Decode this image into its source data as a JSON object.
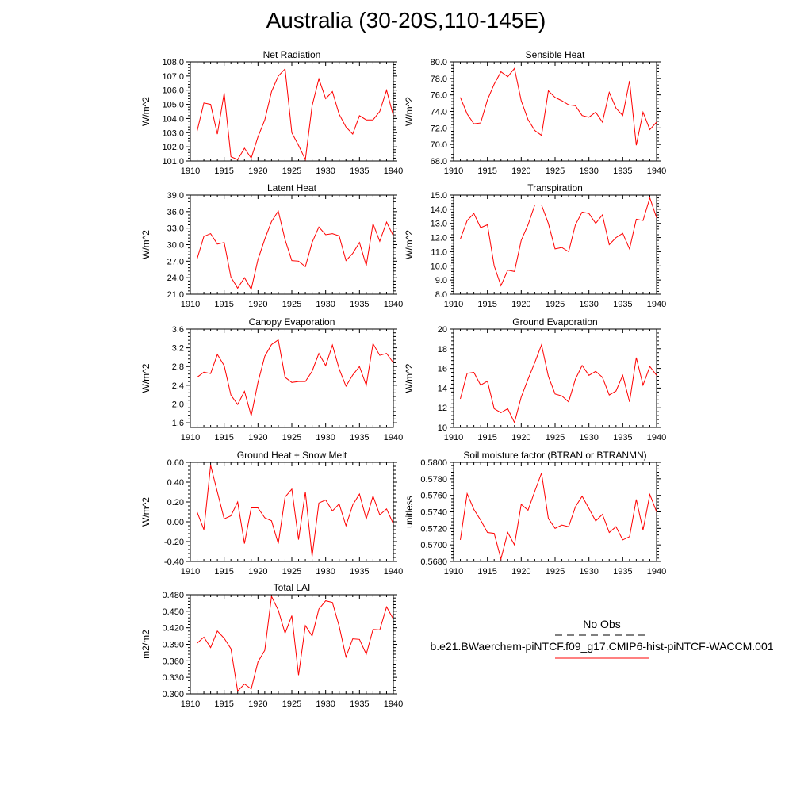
{
  "figure": {
    "title": "Australia (30-20S,110-145E)"
  },
  "legend": {
    "obs_label": "No Obs",
    "model_label": "b.e21.BWaerchem-piNTCF.f09_g17.CMIP6-hist-piNTCF-WACCM.001",
    "obs_color": "#000000",
    "model_color": "#ff0000"
  },
  "chart_data": [
    {
      "type": "line",
      "title": "Net Radiation",
      "xlabel": "",
      "ylabel": "W/m^2",
      "xlim": [
        1910,
        1940
      ],
      "ylim": [
        101.0,
        108.0
      ],
      "x_ticks": [
        1910,
        1915,
        1920,
        1925,
        1930,
        1935,
        1940
      ],
      "y_ticks": [
        "101.0",
        "102.0",
        "103.0",
        "104.0",
        "105.0",
        "106.0",
        "107.0",
        "108.0"
      ],
      "series": [
        {
          "color": "#ff0000",
          "x": [
            1911,
            1912,
            1913,
            1914,
            1915,
            1916,
            1917,
            1918,
            1919,
            1920,
            1921,
            1922,
            1923,
            1924,
            1925,
            1926,
            1927,
            1928,
            1929,
            1930,
            1931,
            1932,
            1933,
            1934,
            1935,
            1936,
            1937,
            1938,
            1939,
            1940
          ],
          "values": [
            103.1,
            105.1,
            105.0,
            102.9,
            105.8,
            101.3,
            101.1,
            101.9,
            101.2,
            102.7,
            103.9,
            105.9,
            107.0,
            107.5,
            103.0,
            102.1,
            101.1,
            104.9,
            106.8,
            105.4,
            105.9,
            104.3,
            103.4,
            102.9,
            104.2,
            103.9,
            103.9,
            104.5,
            106.0,
            104.2
          ]
        }
      ]
    },
    {
      "type": "line",
      "title": "Sensible Heat",
      "xlabel": "",
      "ylabel": "W/m^2",
      "xlim": [
        1910,
        1940
      ],
      "ylim": [
        68.0,
        80.0
      ],
      "x_ticks": [
        1910,
        1915,
        1920,
        1925,
        1930,
        1935,
        1940
      ],
      "y_ticks": [
        "68.0",
        "70.0",
        "72.0",
        "74.0",
        "76.0",
        "78.0",
        "80.0"
      ],
      "series": [
        {
          "color": "#ff0000",
          "x": [
            1911,
            1912,
            1913,
            1914,
            1915,
            1916,
            1917,
            1918,
            1919,
            1920,
            1921,
            1922,
            1923,
            1924,
            1925,
            1926,
            1927,
            1928,
            1929,
            1930,
            1931,
            1932,
            1933,
            1934,
            1935,
            1936,
            1937,
            1938,
            1939,
            1940
          ],
          "values": [
            75.7,
            73.7,
            72.5,
            72.6,
            75.4,
            77.3,
            78.8,
            78.2,
            79.2,
            75.3,
            73.0,
            71.7,
            71.1,
            76.5,
            75.7,
            75.3,
            74.8,
            74.7,
            73.5,
            73.3,
            73.9,
            72.7,
            76.3,
            74.4,
            73.5,
            77.7,
            69.9,
            73.9,
            71.8,
            72.7
          ]
        }
      ]
    },
    {
      "type": "line",
      "title": "Latent Heat",
      "xlabel": "",
      "ylabel": "W/m^2",
      "xlim": [
        1910,
        1940
      ],
      "ylim": [
        21.0,
        39.0
      ],
      "x_ticks": [
        1910,
        1915,
        1920,
        1925,
        1930,
        1935,
        1940
      ],
      "y_ticks": [
        "21.0",
        "24.0",
        "27.0",
        "30.0",
        "33.0",
        "36.0",
        "39.0"
      ],
      "series": [
        {
          "color": "#ff0000",
          "x": [
            1911,
            1912,
            1913,
            1914,
            1915,
            1916,
            1917,
            1918,
            1919,
            1920,
            1921,
            1922,
            1923,
            1924,
            1925,
            1926,
            1927,
            1928,
            1929,
            1930,
            1931,
            1932,
            1933,
            1934,
            1935,
            1936,
            1937,
            1938,
            1939,
            1940
          ],
          "values": [
            27.4,
            31.5,
            32.0,
            30.1,
            30.4,
            24.1,
            22.1,
            24.0,
            21.9,
            27.3,
            31.0,
            34.2,
            36.1,
            30.9,
            27.1,
            27.0,
            26.0,
            30.4,
            33.2,
            31.8,
            32.0,
            31.6,
            27.1,
            28.4,
            30.4,
            26.2,
            33.8,
            30.6,
            34.1,
            31.6
          ]
        }
      ]
    },
    {
      "type": "line",
      "title": "Transpiration",
      "xlabel": "",
      "ylabel": "W/m^2",
      "xlim": [
        1910,
        1940
      ],
      "ylim": [
        8.0,
        15.0
      ],
      "x_ticks": [
        1910,
        1915,
        1920,
        1925,
        1930,
        1935,
        1940
      ],
      "y_ticks": [
        "8.0",
        "9.0",
        "10.0",
        "11.0",
        "12.0",
        "13.0",
        "14.0",
        "15.0"
      ],
      "series": [
        {
          "color": "#ff0000",
          "x": [
            1911,
            1912,
            1913,
            1914,
            1915,
            1916,
            1917,
            1918,
            1919,
            1920,
            1921,
            1922,
            1923,
            1924,
            1925,
            1926,
            1927,
            1928,
            1929,
            1930,
            1931,
            1932,
            1933,
            1934,
            1935,
            1936,
            1937,
            1938,
            1939,
            1940
          ],
          "values": [
            11.9,
            13.2,
            13.7,
            12.7,
            12.9,
            10.0,
            8.6,
            9.7,
            9.6,
            11.8,
            12.9,
            14.3,
            14.3,
            13.0,
            11.2,
            11.3,
            11.0,
            12.9,
            13.8,
            13.7,
            13.0,
            13.6,
            11.5,
            12.0,
            12.3,
            11.2,
            13.3,
            13.2,
            14.8,
            13.4
          ]
        }
      ]
    },
    {
      "type": "line",
      "title": "Canopy Evaporation",
      "xlabel": "",
      "ylabel": "W/m^2",
      "xlim": [
        1910,
        1940
      ],
      "ylim": [
        1.5,
        3.6
      ],
      "x_ticks": [
        1910,
        1915,
        1920,
        1925,
        1930,
        1935,
        1940
      ],
      "y_ticks": [
        "1.6",
        "2.0",
        "2.4",
        "2.8",
        "3.2",
        "3.6"
      ],
      "series": [
        {
          "color": "#ff0000",
          "x": [
            1911,
            1912,
            1913,
            1914,
            1915,
            1916,
            1917,
            1918,
            1919,
            1920,
            1921,
            1922,
            1923,
            1924,
            1925,
            1926,
            1927,
            1928,
            1929,
            1930,
            1931,
            1932,
            1933,
            1934,
            1935,
            1936,
            1937,
            1938,
            1939,
            1940
          ],
          "values": [
            2.57,
            2.68,
            2.65,
            3.06,
            2.82,
            2.19,
            1.99,
            2.27,
            1.75,
            2.46,
            3.02,
            3.27,
            3.37,
            2.57,
            2.46,
            2.48,
            2.48,
            2.7,
            3.08,
            2.82,
            3.26,
            2.75,
            2.38,
            2.62,
            2.8,
            2.4,
            3.29,
            3.04,
            3.08,
            2.88
          ]
        }
      ]
    },
    {
      "type": "line",
      "title": "Ground Evaporation",
      "xlabel": "",
      "ylabel": "W/m^2",
      "xlim": [
        1910,
        1940
      ],
      "ylim": [
        10,
        20
      ],
      "x_ticks": [
        1910,
        1915,
        1920,
        1925,
        1930,
        1935,
        1940
      ],
      "y_ticks": [
        "10",
        "12",
        "14",
        "16",
        "18",
        "20"
      ],
      "series": [
        {
          "color": "#ff0000",
          "x": [
            1911,
            1912,
            1913,
            1914,
            1915,
            1916,
            1917,
            1918,
            1919,
            1920,
            1921,
            1922,
            1923,
            1924,
            1925,
            1926,
            1927,
            1928,
            1929,
            1930,
            1931,
            1932,
            1933,
            1934,
            1935,
            1936,
            1937,
            1938,
            1939,
            1940
          ],
          "values": [
            12.9,
            15.5,
            15.6,
            14.3,
            14.7,
            11.9,
            11.5,
            11.9,
            10.5,
            13.1,
            14.9,
            16.6,
            18.4,
            15.2,
            13.4,
            13.2,
            12.6,
            14.9,
            16.3,
            15.3,
            15.7,
            15.1,
            13.3,
            13.7,
            15.3,
            12.6,
            17.1,
            14.3,
            16.2,
            15.3
          ]
        }
      ]
    },
    {
      "type": "line",
      "title": "Ground Heat + Snow Melt",
      "xlabel": "",
      "ylabel": "W/m^2",
      "xlim": [
        1910,
        1940
      ],
      "ylim": [
        -0.4,
        0.6
      ],
      "x_ticks": [
        1910,
        1915,
        1920,
        1925,
        1930,
        1935,
        1940
      ],
      "y_ticks": [
        "-0.40",
        "-0.20",
        "0.00",
        "0.20",
        "0.40",
        "0.60"
      ],
      "series": [
        {
          "color": "#ff0000",
          "x": [
            1911,
            1912,
            1913,
            1914,
            1915,
            1916,
            1917,
            1918,
            1919,
            1920,
            1921,
            1922,
            1923,
            1924,
            1925,
            1926,
            1927,
            1928,
            1929,
            1930,
            1931,
            1932,
            1933,
            1934,
            1935,
            1936,
            1937,
            1938,
            1939,
            1940
          ],
          "values": [
            0.1,
            -0.08,
            0.57,
            0.3,
            0.03,
            0.06,
            0.2,
            -0.22,
            0.14,
            0.14,
            0.04,
            0.01,
            -0.22,
            0.25,
            0.33,
            -0.18,
            0.3,
            -0.35,
            0.19,
            0.22,
            0.11,
            0.18,
            -0.04,
            0.17,
            0.28,
            0.03,
            0.26,
            0.07,
            0.13,
            -0.02
          ]
        }
      ]
    },
    {
      "type": "line",
      "title": "Soil moisture factor (BTRAN or BTRANMN)",
      "xlabel": "",
      "ylabel": "unitless",
      "xlim": [
        1910,
        1940
      ],
      "ylim": [
        0.568,
        0.58
      ],
      "x_ticks": [
        1910,
        1915,
        1920,
        1925,
        1930,
        1935,
        1940
      ],
      "y_ticks": [
        "0.5680",
        "0.5700",
        "0.5720",
        "0.5740",
        "0.5760",
        "0.5780",
        "0.5800"
      ],
      "series": [
        {
          "color": "#ff0000",
          "x": [
            1911,
            1912,
            1913,
            1914,
            1915,
            1916,
            1917,
            1918,
            1919,
            1920,
            1921,
            1922,
            1923,
            1924,
            1925,
            1926,
            1927,
            1928,
            1929,
            1930,
            1931,
            1932,
            1933,
            1934,
            1935,
            1936,
            1937,
            1938,
            1939,
            1940
          ],
          "values": [
            0.5706,
            0.5762,
            0.5743,
            0.573,
            0.5715,
            0.5714,
            0.5683,
            0.5715,
            0.57,
            0.5749,
            0.5742,
            0.5765,
            0.5787,
            0.5732,
            0.572,
            0.5724,
            0.5722,
            0.5746,
            0.5759,
            0.5744,
            0.5729,
            0.5737,
            0.5715,
            0.5722,
            0.5706,
            0.571,
            0.5755,
            0.5718,
            0.5761,
            0.574
          ]
        }
      ]
    },
    {
      "type": "line",
      "title": "Total LAI",
      "xlabel": "",
      "ylabel": "m2/m2",
      "xlim": [
        1910,
        1940
      ],
      "ylim": [
        0.3,
        0.48
      ],
      "x_ticks": [
        1910,
        1915,
        1920,
        1925,
        1930,
        1935,
        1940
      ],
      "y_ticks": [
        "0.300",
        "0.330",
        "0.360",
        "0.390",
        "0.420",
        "0.450",
        "0.480"
      ],
      "series": [
        {
          "color": "#ff0000",
          "x": [
            1911,
            1912,
            1913,
            1914,
            1915,
            1916,
            1917,
            1918,
            1919,
            1920,
            1921,
            1922,
            1923,
            1924,
            1925,
            1926,
            1927,
            1928,
            1929,
            1930,
            1931,
            1932,
            1933,
            1934,
            1935,
            1936,
            1937,
            1938,
            1939,
            1940
          ],
          "values": [
            0.392,
            0.403,
            0.384,
            0.414,
            0.401,
            0.382,
            0.305,
            0.318,
            0.309,
            0.358,
            0.379,
            0.477,
            0.452,
            0.41,
            0.442,
            0.334,
            0.424,
            0.405,
            0.454,
            0.469,
            0.466,
            0.423,
            0.367,
            0.4,
            0.399,
            0.372,
            0.417,
            0.416,
            0.458,
            0.436
          ]
        }
      ]
    }
  ]
}
